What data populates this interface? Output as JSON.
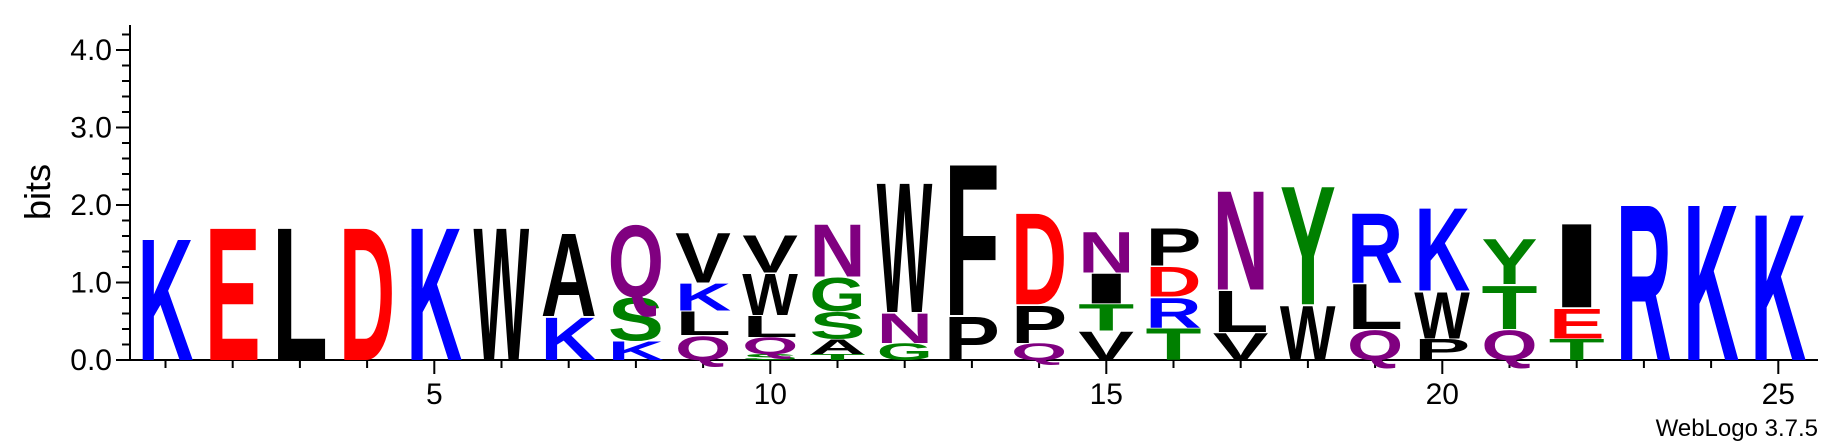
{
  "chart_data": {
    "type": "sequence-logo",
    "title": "",
    "ylabel": "bits",
    "xlabel": "",
    "ylim": [
      0,
      4.3
    ],
    "yticks": [
      "0.0",
      "1.0",
      "2.0",
      "3.0",
      "4.0"
    ],
    "xticks": [
      5,
      10,
      15,
      20,
      25
    ],
    "credit": "WebLogo 3.7.5",
    "colors": {
      "blue": "#0000ff",
      "red": "#ff0000",
      "black": "#000000",
      "green": "#008000",
      "purple": "#800080"
    },
    "positions": [
      {
        "pos": 1,
        "letters": [
          {
            "l": "K",
            "h": 1.62
          }
        ]
      },
      {
        "pos": 2,
        "letters": [
          {
            "l": "E",
            "h": 1.77
          }
        ]
      },
      {
        "pos": 3,
        "letters": [
          {
            "l": "L",
            "h": 1.77
          }
        ]
      },
      {
        "pos": 4,
        "letters": [
          {
            "l": "D",
            "h": 1.77
          }
        ]
      },
      {
        "pos": 5,
        "letters": [
          {
            "l": "K",
            "h": 1.77
          }
        ]
      },
      {
        "pos": 6,
        "letters": [
          {
            "l": "W",
            "h": 1.77
          }
        ]
      },
      {
        "pos": 7,
        "letters": [
          {
            "l": "K",
            "h": 0.57
          },
          {
            "l": "A",
            "h": 1.1
          }
        ]
      },
      {
        "pos": 8,
        "letters": [
          {
            "l": "K",
            "h": 0.25
          },
          {
            "l": "S",
            "h": 0.57
          },
          {
            "l": "Q",
            "h": 0.96
          }
        ]
      },
      {
        "pos": 9,
        "letters": [
          {
            "l": "Q",
            "h": 0.32
          },
          {
            "l": "L",
            "h": 0.32
          },
          {
            "l": "K",
            "h": 0.36
          },
          {
            "l": "V",
            "h": 0.66
          }
        ]
      },
      {
        "pos": 10,
        "letters": [
          {
            "l": "S",
            "h": 0.08
          },
          {
            "l": "Q",
            "h": 0.22
          },
          {
            "l": "L",
            "h": 0.28
          },
          {
            "l": "W",
            "h": 0.55
          },
          {
            "l": "V",
            "h": 0.5
          }
        ]
      },
      {
        "pos": 11,
        "letters": [
          {
            "l": "T",
            "h": 0.08
          },
          {
            "l": "A",
            "h": 0.2
          },
          {
            "l": "S",
            "h": 0.35
          },
          {
            "l": "G",
            "h": 0.45
          },
          {
            "l": "N",
            "h": 0.7
          }
        ]
      },
      {
        "pos": 12,
        "letters": [
          {
            "l": "G",
            "h": 0.22
          },
          {
            "l": "N",
            "h": 0.4
          },
          {
            "l": "W",
            "h": 1.73
          }
        ]
      },
      {
        "pos": 13,
        "letters": [
          {
            "l": "P",
            "h": 0.58
          },
          {
            "l": "F",
            "h": 2.02
          }
        ]
      },
      {
        "pos": 14,
        "letters": [
          {
            "l": "Q",
            "h": 0.22
          },
          {
            "l": "P",
            "h": 0.5
          },
          {
            "l": "D",
            "h": 1.22
          }
        ]
      },
      {
        "pos": 15,
        "letters": [
          {
            "l": "V",
            "h": 0.38
          },
          {
            "l": "T",
            "h": 0.35
          },
          {
            "l": "I",
            "h": 0.4
          },
          {
            "l": "N",
            "h": 0.54
          }
        ]
      },
      {
        "pos": 16,
        "letters": [
          {
            "l": "T",
            "h": 0.42
          },
          {
            "l": "R",
            "h": 0.4
          },
          {
            "l": "D",
            "h": 0.4
          },
          {
            "l": "P",
            "h": 0.5
          }
        ]
      },
      {
        "pos": 17,
        "letters": [
          {
            "l": "V",
            "h": 0.36
          },
          {
            "l": "L",
            "h": 0.55
          },
          {
            "l": "N",
            "h": 1.32
          }
        ]
      },
      {
        "pos": 18,
        "letters": [
          {
            "l": "W",
            "h": 0.72
          },
          {
            "l": "Y",
            "h": 1.58
          }
        ]
      },
      {
        "pos": 19,
        "letters": [
          {
            "l": "Q",
            "h": 0.4
          },
          {
            "l": "L",
            "h": 0.6
          },
          {
            "l": "R",
            "h": 0.93
          }
        ]
      },
      {
        "pos": 20,
        "letters": [
          {
            "l": "P",
            "h": 0.28
          },
          {
            "l": "W",
            "h": 0.62
          },
          {
            "l": "K",
            "h": 1.1
          }
        ]
      },
      {
        "pos": 21,
        "letters": [
          {
            "l": "Q",
            "h": 0.4
          },
          {
            "l": "T",
            "h": 0.58
          },
          {
            "l": "Y",
            "h": 0.6
          }
        ]
      },
      {
        "pos": 22,
        "letters": [
          {
            "l": "T",
            "h": 0.28
          },
          {
            "l": "E",
            "h": 0.4
          },
          {
            "l": "I",
            "h": 1.12
          }
        ]
      },
      {
        "pos": 23,
        "letters": [
          {
            "l": "R",
            "h": 2.08
          }
        ]
      },
      {
        "pos": 24,
        "letters": [
          {
            "l": "K",
            "h": 2.08
          }
        ]
      },
      {
        "pos": 25,
        "letters": [
          {
            "l": "K",
            "h": 1.95
          }
        ]
      }
    ]
  }
}
